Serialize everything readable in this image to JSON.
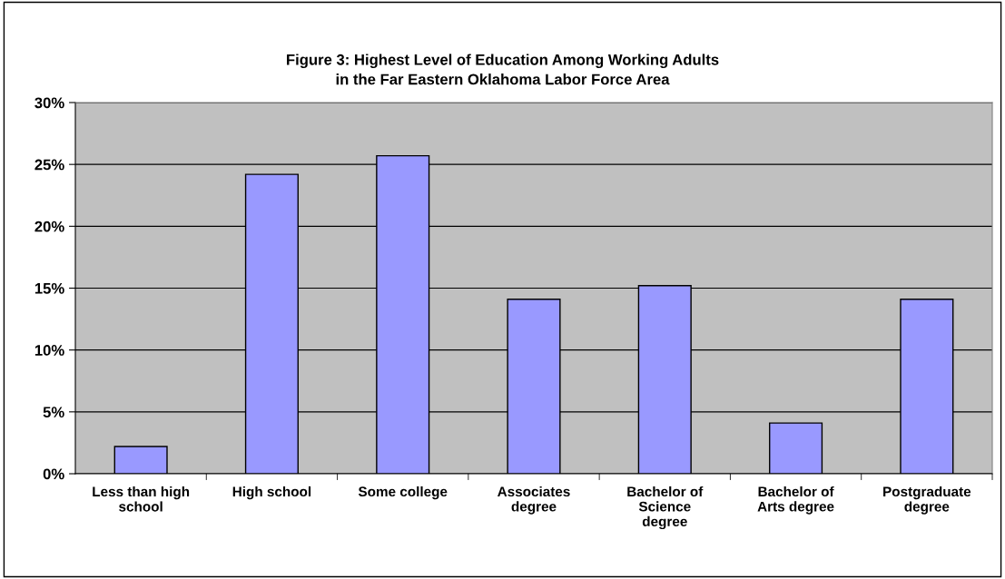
{
  "chart_data": {
    "type": "bar",
    "title": "Figure 3: Highest Level of Education Among Working Adults\nin the Far Eastern Oklahoma Labor Force Area",
    "categories": [
      "Less than high\nschool",
      "High school",
      "Some college",
      "Associates\ndegree",
      "Bachelor of\nScience\ndegree",
      "Bachelor of\nArts degree",
      "Postgraduate\ndegree"
    ],
    "values": [
      2.2,
      24.2,
      25.7,
      14.1,
      15.2,
      4.1,
      14.1
    ],
    "color": "#9999ff",
    "ylim": [
      0,
      30
    ],
    "yticks": [
      {
        "value": 0,
        "label": "0%"
      },
      {
        "value": 5,
        "label": "5%"
      },
      {
        "value": 10,
        "label": "10%"
      },
      {
        "value": 15,
        "label": "15%"
      },
      {
        "value": 20,
        "label": "20%"
      },
      {
        "value": 25,
        "label": "25%"
      },
      {
        "value": 30,
        "label": "30%"
      }
    ],
    "grid": "y",
    "legend": false
  }
}
